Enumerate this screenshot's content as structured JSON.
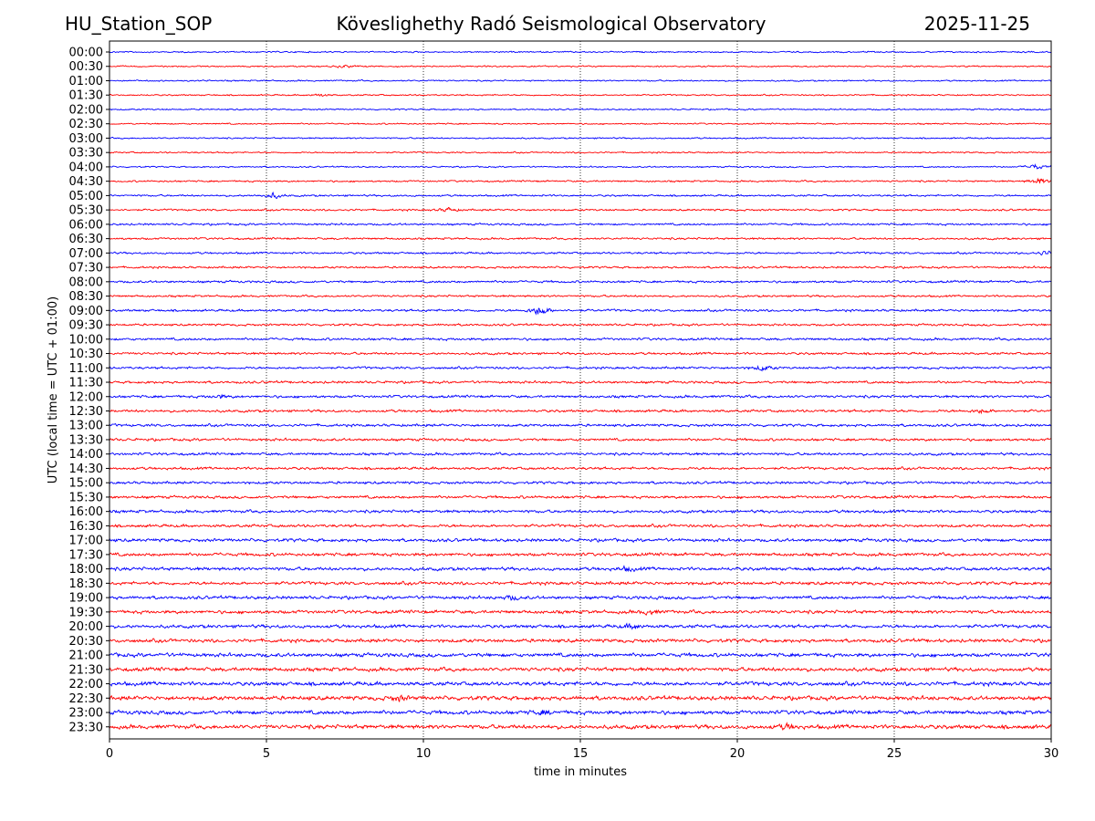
{
  "header": {
    "station": "HU_Station_SOP",
    "observatory": "Köveslighethy Radó Seismological Observatory",
    "date": "2025-11-25"
  },
  "chart_data": {
    "type": "line",
    "title": "Köveslighethy Radó Seismological Observatory",
    "xlabel": "time in minutes",
    "ylabel": "UTC (local time = UTC + 01:00)",
    "xlim": [
      0,
      30
    ],
    "x_ticks": [
      "0",
      "5",
      "10",
      "15",
      "20",
      "25",
      "30"
    ],
    "grid": "vertical dotted at x ticks",
    "trace_colors": [
      "#0000ff",
      "#ff0000"
    ],
    "rows": [
      {
        "label": "00:00",
        "amplitude": 1.0,
        "events": []
      },
      {
        "label": "00:30",
        "amplitude": 1.0,
        "events": [
          {
            "t": 7.5,
            "a": 2
          }
        ]
      },
      {
        "label": "01:00",
        "amplitude": 1.0,
        "events": []
      },
      {
        "label": "01:30",
        "amplitude": 1.0,
        "events": [
          {
            "t": 6.7,
            "a": 2
          }
        ]
      },
      {
        "label": "02:00",
        "amplitude": 1.0,
        "events": []
      },
      {
        "label": "02:30",
        "amplitude": 1.0,
        "events": []
      },
      {
        "label": "03:00",
        "amplitude": 1.0,
        "events": []
      },
      {
        "label": "03:30",
        "amplitude": 1.0,
        "events": []
      },
      {
        "label": "04:00",
        "amplitude": 1.0,
        "events": [
          {
            "t": 29.5,
            "a": 4
          }
        ]
      },
      {
        "label": "04:30",
        "amplitude": 1.2,
        "events": [
          {
            "t": 29.6,
            "a": 5
          }
        ]
      },
      {
        "label": "05:00",
        "amplitude": 1.3,
        "events": [
          {
            "t": 5.2,
            "a": 4
          }
        ]
      },
      {
        "label": "05:30",
        "amplitude": 1.3,
        "events": [
          {
            "t": 10.8,
            "a": 3
          }
        ]
      },
      {
        "label": "06:00",
        "amplitude": 1.4,
        "events": []
      },
      {
        "label": "06:30",
        "amplitude": 1.4,
        "events": []
      },
      {
        "label": "07:00",
        "amplitude": 1.4,
        "events": [
          {
            "t": 29.8,
            "a": 3
          }
        ]
      },
      {
        "label": "07:30",
        "amplitude": 1.4,
        "events": []
      },
      {
        "label": "08:00",
        "amplitude": 1.6,
        "events": []
      },
      {
        "label": "08:30",
        "amplitude": 1.4,
        "events": []
      },
      {
        "label": "09:00",
        "amplitude": 1.6,
        "events": [
          {
            "t": 13.7,
            "a": 8
          }
        ]
      },
      {
        "label": "09:30",
        "amplitude": 1.5,
        "events": []
      },
      {
        "label": "10:00",
        "amplitude": 1.7,
        "events": []
      },
      {
        "label": "10:30",
        "amplitude": 1.6,
        "events": []
      },
      {
        "label": "11:00",
        "amplitude": 1.6,
        "events": [
          {
            "t": 20.8,
            "a": 4
          }
        ]
      },
      {
        "label": "11:30",
        "amplitude": 1.7,
        "events": []
      },
      {
        "label": "12:00",
        "amplitude": 1.8,
        "events": [
          {
            "t": 3.5,
            "a": 2.5
          }
        ]
      },
      {
        "label": "12:30",
        "amplitude": 1.8,
        "events": [
          {
            "t": 27.8,
            "a": 3
          }
        ]
      },
      {
        "label": "13:00",
        "amplitude": 1.8,
        "events": []
      },
      {
        "label": "13:30",
        "amplitude": 1.8,
        "events": []
      },
      {
        "label": "14:00",
        "amplitude": 1.8,
        "events": []
      },
      {
        "label": "14:30",
        "amplitude": 1.8,
        "events": []
      },
      {
        "label": "15:00",
        "amplitude": 1.8,
        "events": []
      },
      {
        "label": "15:30",
        "amplitude": 1.9,
        "events": []
      },
      {
        "label": "16:00",
        "amplitude": 2.0,
        "events": []
      },
      {
        "label": "16:30",
        "amplitude": 2.0,
        "events": []
      },
      {
        "label": "17:00",
        "amplitude": 2.2,
        "events": []
      },
      {
        "label": "17:30",
        "amplitude": 2.2,
        "events": []
      },
      {
        "label": "18:00",
        "amplitude": 2.3,
        "events": [
          {
            "t": 16.5,
            "a": 3
          }
        ]
      },
      {
        "label": "18:30",
        "amplitude": 2.2,
        "events": []
      },
      {
        "label": "19:00",
        "amplitude": 2.2,
        "events": [
          {
            "t": 12.8,
            "a": 3
          }
        ]
      },
      {
        "label": "19:30",
        "amplitude": 2.3,
        "events": [
          {
            "t": 17.2,
            "a": 3
          }
        ]
      },
      {
        "label": "20:00",
        "amplitude": 2.3,
        "events": [
          {
            "t": 16.7,
            "a": 4
          }
        ]
      },
      {
        "label": "20:30",
        "amplitude": 2.4,
        "events": []
      },
      {
        "label": "21:00",
        "amplitude": 2.6,
        "events": []
      },
      {
        "label": "21:30",
        "amplitude": 2.6,
        "events": []
      },
      {
        "label": "22:00",
        "amplitude": 2.7,
        "events": []
      },
      {
        "label": "22:30",
        "amplitude": 2.8,
        "events": [
          {
            "t": 9.2,
            "a": 3.5
          }
        ]
      },
      {
        "label": "23:00",
        "amplitude": 2.7,
        "events": [
          {
            "t": 13.8,
            "a": 3
          }
        ]
      },
      {
        "label": "23:30",
        "amplitude": 2.8,
        "events": [
          {
            "t": 21.6,
            "a": 3.5
          }
        ]
      }
    ]
  }
}
